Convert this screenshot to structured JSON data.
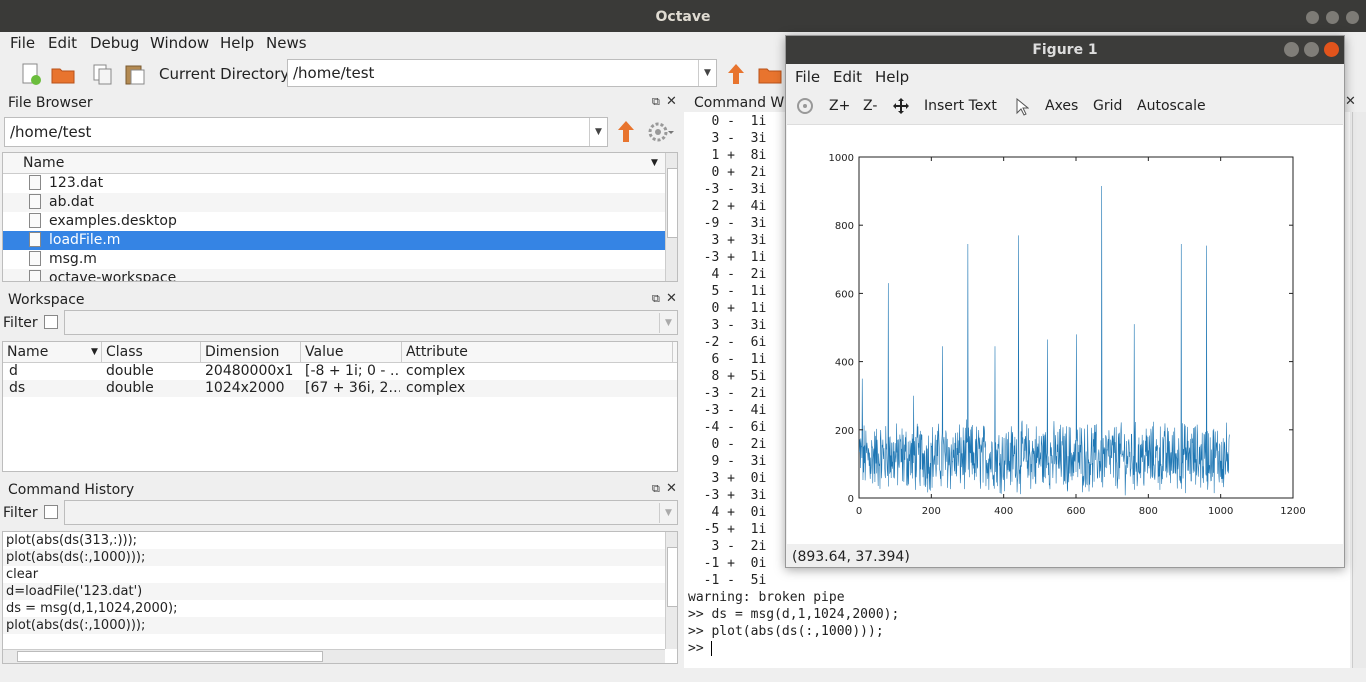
{
  "window": {
    "title": "Octave"
  },
  "menus": [
    "File",
    "Edit",
    "Debug",
    "Window",
    "Help",
    "News"
  ],
  "toolbar": {
    "curdir_label": "Current Directory:",
    "curdir_value": "/home/test"
  },
  "file_browser": {
    "title": "File Browser",
    "path": "/home/test",
    "column": "Name",
    "files": [
      "123.dat",
      "ab.dat",
      "examples.desktop",
      "loadFile.m",
      "msg.m",
      "octave-workspace"
    ],
    "selected_index": 3
  },
  "workspace": {
    "title": "Workspace",
    "filter_label": "Filter",
    "columns": [
      "Name",
      "Class",
      "Dimension",
      "Value",
      "Attribute"
    ],
    "rows": [
      [
        "d",
        "double",
        "20480000x1",
        "[-8 + 1i; 0 - …",
        "complex"
      ],
      [
        "ds",
        "double",
        "1024x2000",
        "[67 + 36i, 2…",
        "complex"
      ]
    ]
  },
  "history": {
    "title": "Command History",
    "filter_label": "Filter",
    "items": [
      "plot(abs(ds(313,:)));",
      "plot(abs(ds(:,1000)));",
      "clear",
      "d=loadFile('123.dat')",
      "ds = msg(d,1,1024,2000);",
      "plot(abs(ds(:,1000)));"
    ]
  },
  "command_window": {
    "title": "Command Wi",
    "lines": [
      "   0 -  1i",
      "   3 -  3i",
      "   1 +  8i",
      "   0 +  2i",
      "  -3 -  3i",
      "   2 +  4i",
      "  -9 -  3i",
      "   3 +  3i",
      "  -3 +  1i",
      "   4 -  2i",
      "   5 -  1i",
      "   0 +  1i",
      "   3 -  3i",
      "  -2 -  6i",
      "   6 -  1i",
      "   8 +  5i",
      "  -3 -  2i",
      "  -3 -  4i",
      "  -4 -  6i",
      "   0 -  2i",
      "   9 -  3i",
      "   3 +  0i",
      "  -3 +  3i",
      "   4 +  0i",
      "  -5 +  1i",
      "   3 -  2i",
      "  -1 +  0i",
      "  -1 -  5i",
      "warning: broken pipe",
      ">> ds = msg(d,1,1024,2000);",
      ">> plot(abs(ds(:,1000)));",
      ">> "
    ]
  },
  "figure": {
    "title": "Figure 1",
    "menus": [
      "File",
      "Edit",
      "Help"
    ],
    "tools": [
      "Z+",
      "Z-",
      "Insert Text",
      "Axes",
      "Grid",
      "Autoscale"
    ],
    "status": "(893.64, 37.394)",
    "line_color": "#1f77b4"
  },
  "chart_data": {
    "type": "line",
    "xlim": [
      0,
      1200
    ],
    "ylim": [
      0,
      1000
    ],
    "x_ticks": [
      0,
      200,
      400,
      600,
      800,
      1000,
      1200
    ],
    "y_ticks": [
      0,
      200,
      400,
      600,
      800,
      1000
    ],
    "n_points": 1024,
    "noise_level": 120,
    "spikes": [
      {
        "x": 8,
        "y": 350
      },
      {
        "x": 80,
        "y": 630
      },
      {
        "x": 150,
        "y": 300
      },
      {
        "x": 230,
        "y": 445
      },
      {
        "x": 300,
        "y": 745
      },
      {
        "x": 375,
        "y": 445
      },
      {
        "x": 440,
        "y": 770
      },
      {
        "x": 520,
        "y": 465
      },
      {
        "x": 600,
        "y": 480
      },
      {
        "x": 670,
        "y": 915
      },
      {
        "x": 760,
        "y": 510
      },
      {
        "x": 890,
        "y": 745
      },
      {
        "x": 960,
        "y": 740
      }
    ]
  }
}
